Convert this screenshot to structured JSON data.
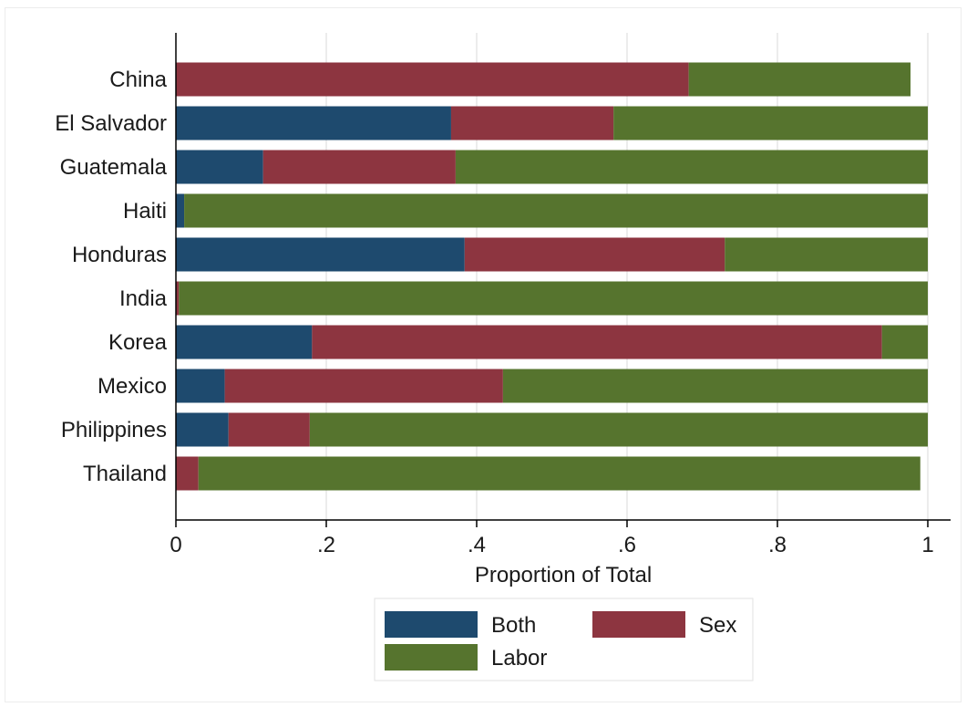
{
  "chart_data": {
    "type": "bar",
    "orientation": "horizontal",
    "stacked": true,
    "categories": [
      "China",
      "El Salvador",
      "Guatemala",
      "Haiti",
      "Honduras",
      "India",
      "Korea",
      "Mexico",
      "Philippines",
      "Thailand"
    ],
    "series": [
      {
        "name": "Both",
        "color": "#1e4a6e",
        "values": [
          0.0,
          0.366,
          0.116,
          0.011,
          0.384,
          0.0,
          0.181,
          0.065,
          0.07,
          0.0
        ]
      },
      {
        "name": "Sex",
        "color": "#8d3540",
        "values": [
          0.682,
          0.216,
          0.256,
          0.0,
          0.346,
          0.004,
          0.758,
          0.37,
          0.108,
          0.03
        ]
      },
      {
        "name": "Labor",
        "color": "#56742e",
        "values": [
          0.295,
          0.418,
          0.628,
          0.989,
          0.27,
          0.996,
          0.061,
          0.565,
          0.822,
          0.96
        ]
      }
    ],
    "xticks": [
      "0",
      ".2",
      ".4",
      ".6",
      ".8",
      "1"
    ],
    "xtick_values": [
      0,
      0.2,
      0.4,
      0.6,
      0.8,
      1.0
    ],
    "xlabel": "Proportion of Total",
    "ylabel": "",
    "title": "",
    "xlim": [
      0,
      1
    ],
    "grid": "vertical",
    "legend_position": "bottom"
  }
}
